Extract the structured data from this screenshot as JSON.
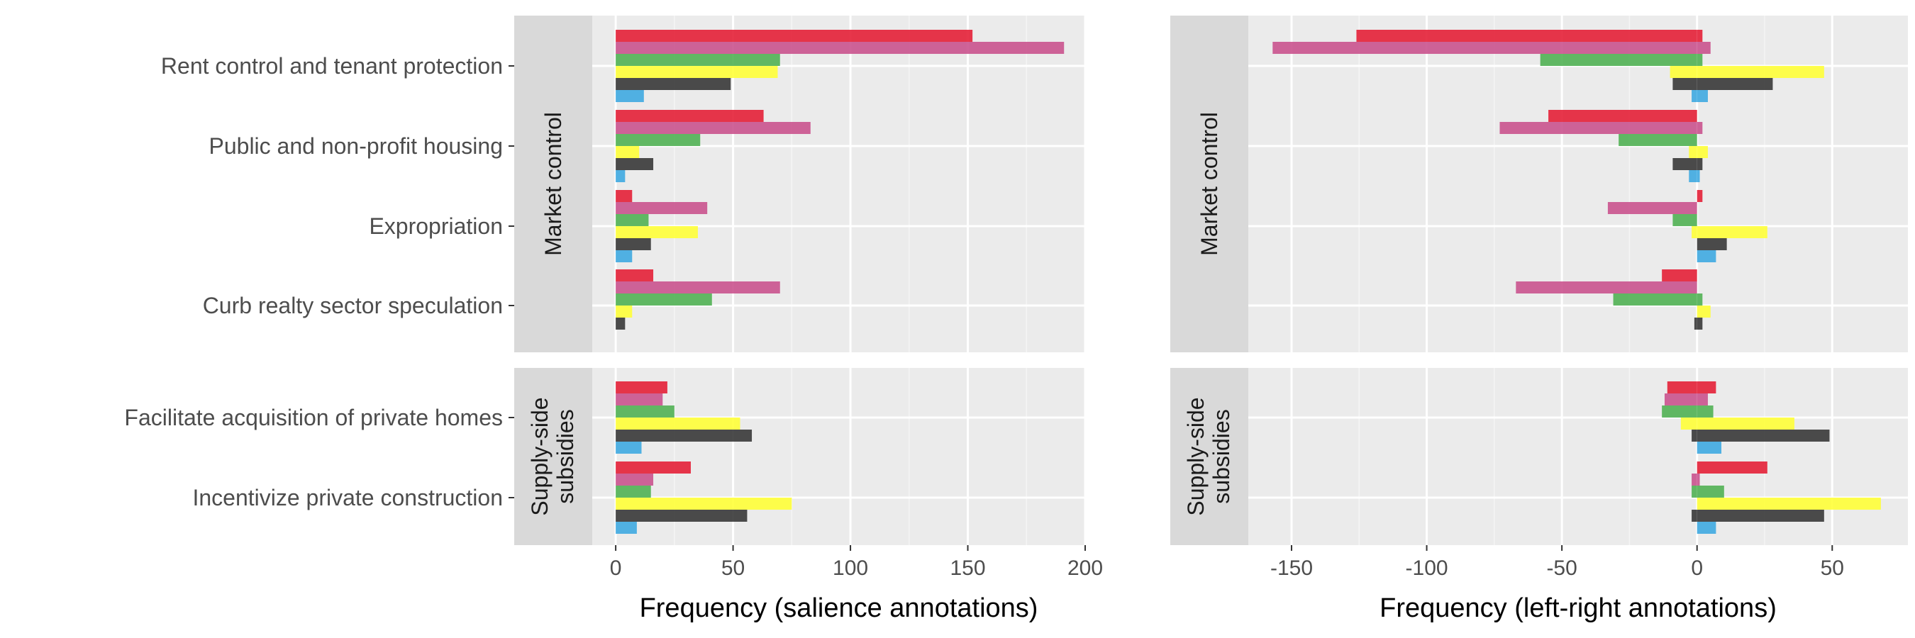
{
  "chart_data": {
    "type": "bar",
    "orientation": "horizontal",
    "grid": true,
    "legend": "none",
    "series_colors": [
      "#E41A32",
      "#C84E8B",
      "#4CAF50",
      "#FFFF33",
      "#333333",
      "#3AA7E0"
    ],
    "facets": [
      {
        "label": "Market control",
        "categories": [
          "Rent control and tenant protection",
          "Public and non-profit housing",
          "Expropriation",
          "Curb realty sector speculation"
        ]
      },
      {
        "label": "Supply-side subsidies",
        "label_lines": [
          "Supply-side",
          "subsidies"
        ],
        "categories": [
          "Facilitate acquisition of private homes",
          "Incentivize private construction"
        ]
      }
    ],
    "panels": [
      {
        "xlabel": "Frequency (salience annotations)",
        "xlim": [
          -10,
          200
        ],
        "xticks": [
          0,
          50,
          100,
          150,
          200
        ],
        "xtick_labels": [
          "0",
          "50",
          "100",
          "150",
          "200"
        ],
        "bars": [
          [
            [
              152
            ],
            [
              191
            ],
            [
              70
            ],
            [
              69
            ],
            [
              49
            ],
            [
              12
            ]
          ],
          [
            [
              63
            ],
            [
              83
            ],
            [
              36
            ],
            [
              10
            ],
            [
              16
            ],
            [
              4
            ]
          ],
          [
            [
              7
            ],
            [
              39
            ],
            [
              14
            ],
            [
              35
            ],
            [
              15
            ],
            [
              7
            ]
          ],
          [
            [
              16
            ],
            [
              70
            ],
            [
              41
            ],
            [
              7
            ],
            [
              4
            ],
            [
              0
            ]
          ],
          [
            [
              22
            ],
            [
              20
            ],
            [
              25
            ],
            [
              53
            ],
            [
              58
            ],
            [
              11
            ]
          ],
          [
            [
              32
            ],
            [
              16
            ],
            [
              15
            ],
            [
              75
            ],
            [
              56
            ],
            [
              9
            ]
          ]
        ]
      },
      {
        "xlabel": "Frequency (left-right annotations)",
        "xlim": [
          -166,
          78
        ],
        "xticks": [
          -150,
          -100,
          -50,
          0,
          50
        ],
        "xtick_labels": [
          "-150",
          "-100",
          "-50",
          "0",
          "50"
        ],
        "bars": [
          [
            [
              -126,
              2
            ],
            [
              -157,
              5
            ],
            [
              -58,
              2
            ],
            [
              -10,
              47
            ],
            [
              -9,
              28
            ],
            [
              -2,
              4
            ]
          ],
          [
            [
              -55,
              0
            ],
            [
              -73,
              2
            ],
            [
              -29,
              0
            ],
            [
              -3,
              4
            ],
            [
              -9,
              2
            ],
            [
              -3,
              1
            ]
          ],
          [
            [
              0,
              2
            ],
            [
              -33,
              0
            ],
            [
              -9,
              0
            ],
            [
              -2,
              26
            ],
            [
              0,
              11
            ],
            [
              0,
              7
            ]
          ],
          [
            [
              -13,
              0
            ],
            [
              -67,
              0
            ],
            [
              -31,
              2
            ],
            [
              0,
              5
            ],
            [
              -1,
              2
            ],
            [
              0,
              0
            ]
          ],
          [
            [
              -11,
              7
            ],
            [
              -12,
              4
            ],
            [
              -13,
              6
            ],
            [
              -6,
              36
            ],
            [
              -2,
              49
            ],
            [
              0,
              9
            ]
          ],
          [
            [
              0,
              26
            ],
            [
              -2,
              1
            ],
            [
              -2,
              10
            ],
            [
              0,
              68
            ],
            [
              -2,
              47
            ],
            [
              0,
              7
            ]
          ]
        ]
      }
    ]
  }
}
